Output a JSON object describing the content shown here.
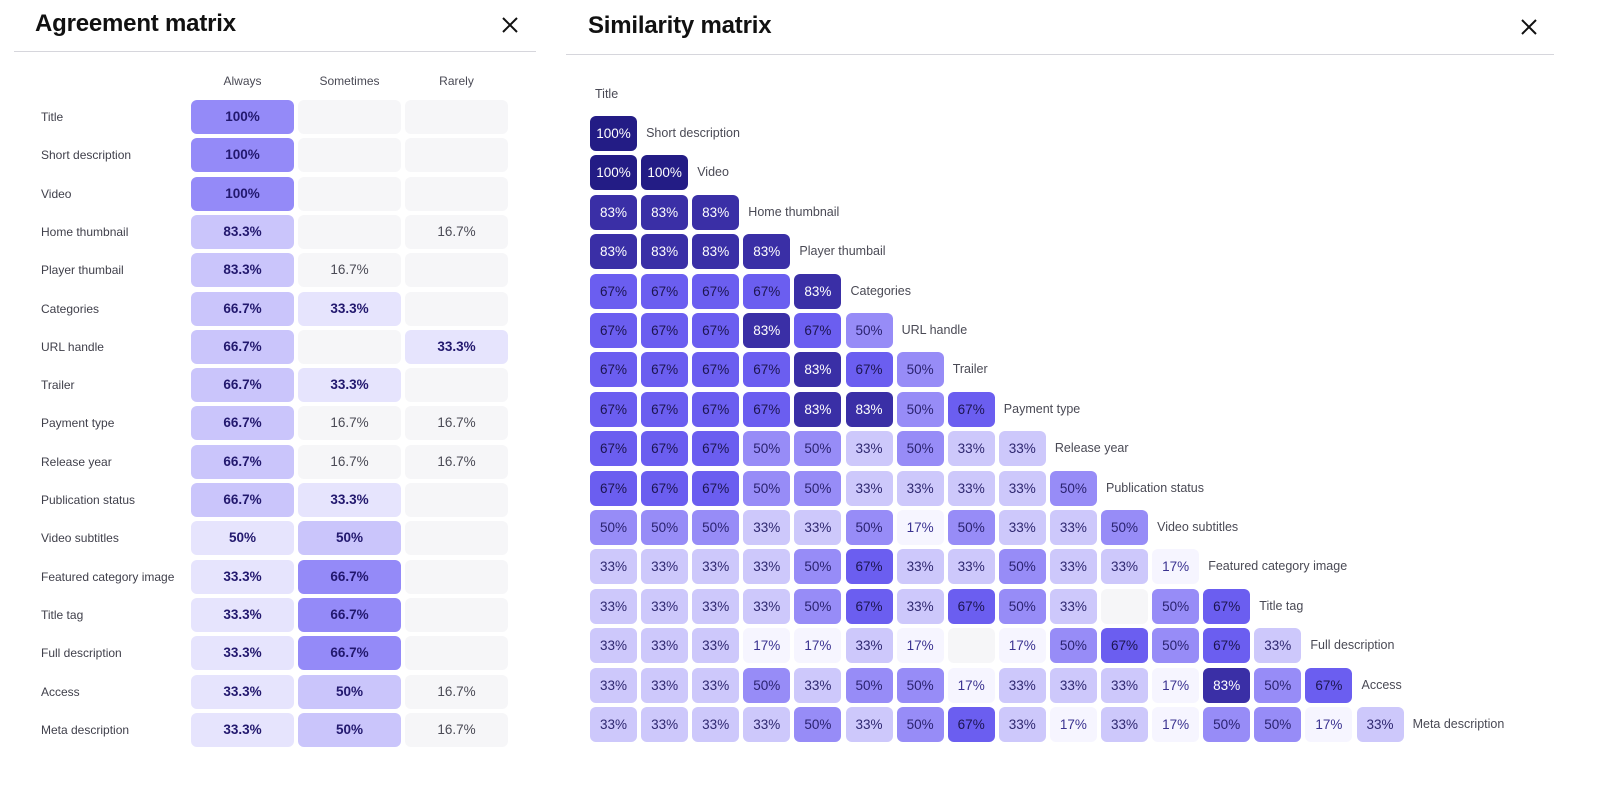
{
  "agreement": {
    "title": "Agreement matrix",
    "close_label": "Close",
    "columns": [
      "Always",
      "Sometimes",
      "Rarely"
    ],
    "rows": [
      {
        "label": "Title",
        "values": [
          "100%",
          "",
          ""
        ]
      },
      {
        "label": "Short description",
        "values": [
          "100%",
          "",
          ""
        ]
      },
      {
        "label": "Video",
        "values": [
          "100%",
          "",
          ""
        ]
      },
      {
        "label": "Home thumbnail",
        "values": [
          "83.3%",
          "",
          "16.7%"
        ]
      },
      {
        "label": "Player thumbail",
        "values": [
          "83.3%",
          "16.7%",
          ""
        ]
      },
      {
        "label": "Categories",
        "values": [
          "66.7%",
          "33.3%",
          ""
        ]
      },
      {
        "label": "URL handle",
        "values": [
          "66.7%",
          "",
          "33.3%"
        ]
      },
      {
        "label": "Trailer",
        "values": [
          "66.7%",
          "33.3%",
          ""
        ]
      },
      {
        "label": "Payment type",
        "values": [
          "66.7%",
          "16.7%",
          "16.7%"
        ]
      },
      {
        "label": "Release year",
        "values": [
          "66.7%",
          "16.7%",
          "16.7%"
        ]
      },
      {
        "label": "Publication status",
        "values": [
          "66.7%",
          "33.3%",
          ""
        ]
      },
      {
        "label": "Video subtitles",
        "values": [
          "50%",
          "50%",
          ""
        ]
      },
      {
        "label": "Featured category image",
        "values": [
          "33.3%",
          "66.7%",
          ""
        ]
      },
      {
        "label": "Title tag",
        "values": [
          "33.3%",
          "66.7%",
          ""
        ]
      },
      {
        "label": "Full description",
        "values": [
          "33.3%",
          "66.7%",
          ""
        ]
      },
      {
        "label": "Access",
        "values": [
          "33.3%",
          "50%",
          "16.7%"
        ]
      },
      {
        "label": "Meta description",
        "values": [
          "33.3%",
          "50%",
          "16.7%"
        ]
      }
    ]
  },
  "similarity": {
    "title": "Similarity matrix",
    "close_label": "Close",
    "first_label": "Title",
    "rows": [
      {
        "label": "Short description",
        "values": [
          100
        ]
      },
      {
        "label": "Video",
        "values": [
          100,
          100
        ]
      },
      {
        "label": "Home thumbnail",
        "values": [
          83,
          83,
          83
        ]
      },
      {
        "label": "Player thumbail",
        "values": [
          83,
          83,
          83,
          83
        ]
      },
      {
        "label": "Categories",
        "values": [
          67,
          67,
          67,
          67,
          83
        ]
      },
      {
        "label": "URL handle",
        "values": [
          67,
          67,
          67,
          83,
          67,
          50
        ]
      },
      {
        "label": "Trailer",
        "values": [
          67,
          67,
          67,
          67,
          83,
          67,
          50
        ]
      },
      {
        "label": "Payment type",
        "values": [
          67,
          67,
          67,
          67,
          83,
          83,
          50,
          67
        ]
      },
      {
        "label": "Release year",
        "values": [
          67,
          67,
          67,
          50,
          50,
          33,
          50,
          33,
          33
        ]
      },
      {
        "label": "Publication status",
        "values": [
          67,
          67,
          67,
          50,
          50,
          33,
          33,
          33,
          33,
          50
        ]
      },
      {
        "label": "Video subtitles",
        "values": [
          50,
          50,
          50,
          33,
          33,
          50,
          17,
          50,
          33,
          33,
          50
        ]
      },
      {
        "label": "Featured category image",
        "values": [
          33,
          33,
          33,
          33,
          50,
          67,
          33,
          33,
          50,
          33,
          33,
          17
        ]
      },
      {
        "label": "Title tag",
        "values": [
          33,
          33,
          33,
          33,
          50,
          67,
          33,
          67,
          50,
          33,
          null,
          50,
          67
        ]
      },
      {
        "label": "Full description",
        "values": [
          33,
          33,
          33,
          17,
          17,
          33,
          17,
          null,
          17,
          50,
          67,
          50,
          67,
          33
        ]
      },
      {
        "label": "Access",
        "values": [
          33,
          33,
          33,
          50,
          33,
          50,
          50,
          17,
          33,
          33,
          33,
          17,
          83,
          50,
          67
        ]
      },
      {
        "label": "Meta description",
        "values": [
          33,
          33,
          33,
          33,
          50,
          33,
          50,
          67,
          33,
          17,
          33,
          17,
          50,
          50,
          17,
          33
        ]
      }
    ],
    "value_suffix": "%"
  },
  "colors": {
    "sim_100": "#231c85",
    "sim_83": "#3a2fa6",
    "sim_67": "#6b5ef0",
    "sim_50": "#978cf7",
    "sim_33": "#cdc8fb",
    "sim_17": "#f6f5ff",
    "sim_empty": "#f6f6f8",
    "agree_100": "#948af8",
    "agree_83": "#cac5fb",
    "agree_67": "#cac5fb",
    "agree_50_always": "#e6e4fd",
    "agree_50_sometimes": "#cac5fb",
    "agree_33": "#e6e4fd",
    "agree_67_sometimes": "#948af8",
    "agree_empty": "#f6f6f8"
  },
  "chart_data": [
    {
      "type": "heatmap",
      "title": "Agreement matrix",
      "x": [
        "Always",
        "Sometimes",
        "Rarely"
      ],
      "y": [
        "Title",
        "Short description",
        "Video",
        "Home thumbnail",
        "Player thumbail",
        "Categories",
        "URL handle",
        "Trailer",
        "Payment type",
        "Release year",
        "Publication status",
        "Video subtitles",
        "Featured category image",
        "Title tag",
        "Full description",
        "Access",
        "Meta description"
      ],
      "values": [
        [
          100,
          null,
          null
        ],
        [
          100,
          null,
          null
        ],
        [
          100,
          null,
          null
        ],
        [
          83.3,
          null,
          16.7
        ],
        [
          83.3,
          16.7,
          null
        ],
        [
          66.7,
          33.3,
          null
        ],
        [
          66.7,
          null,
          33.3
        ],
        [
          66.7,
          33.3,
          null
        ],
        [
          66.7,
          16.7,
          16.7
        ],
        [
          66.7,
          16.7,
          16.7
        ],
        [
          66.7,
          33.3,
          null
        ],
        [
          50,
          50,
          null
        ],
        [
          33.3,
          66.7,
          null
        ],
        [
          33.3,
          66.7,
          null
        ],
        [
          33.3,
          66.7,
          null
        ],
        [
          33.3,
          50,
          16.7
        ],
        [
          33.3,
          50,
          16.7
        ]
      ],
      "unit": "%"
    },
    {
      "type": "heatmap",
      "title": "Similarity matrix",
      "labels": [
        "Title",
        "Short description",
        "Video",
        "Home thumbnail",
        "Player thumbail",
        "Categories",
        "URL handle",
        "Trailer",
        "Payment type",
        "Release year",
        "Publication status",
        "Video subtitles",
        "Featured category image",
        "Title tag",
        "Full description",
        "Access",
        "Meta description"
      ],
      "shape": "lower-triangular",
      "unit": "%"
    }
  ]
}
